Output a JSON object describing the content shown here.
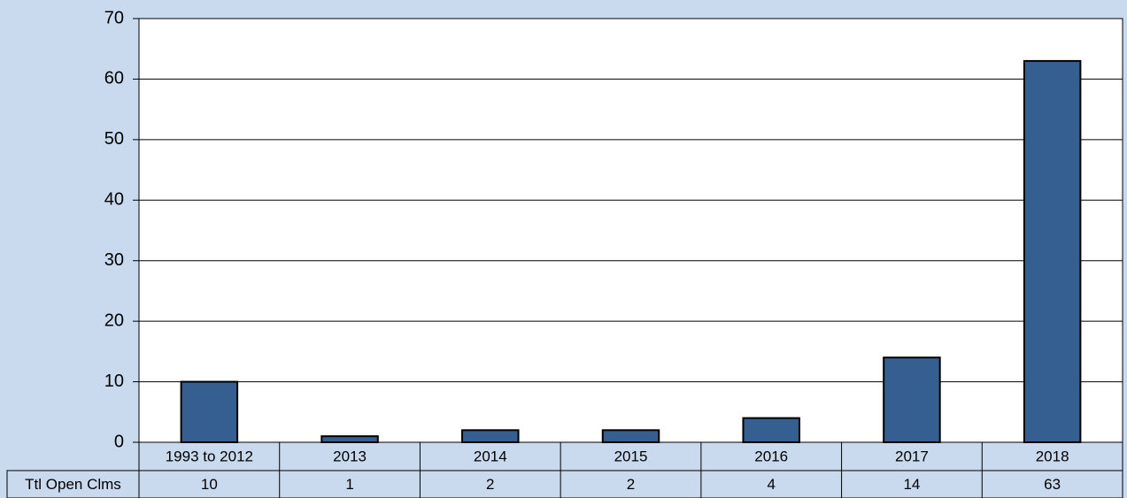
{
  "chart_data": {
    "type": "bar",
    "categories": [
      "1993 to 2012",
      "2013",
      "2014",
      "2015",
      "2016",
      "2017",
      "2018"
    ],
    "series": [
      {
        "name": "Ttl Open Clms",
        "color": "#365f91",
        "values": [
          10,
          1,
          2,
          2,
          4,
          14,
          63
        ]
      }
    ],
    "ylim": [
      0,
      70
    ],
    "yticks": [
      0,
      10,
      20,
      30,
      40,
      50,
      60,
      70
    ],
    "grid": true
  }
}
